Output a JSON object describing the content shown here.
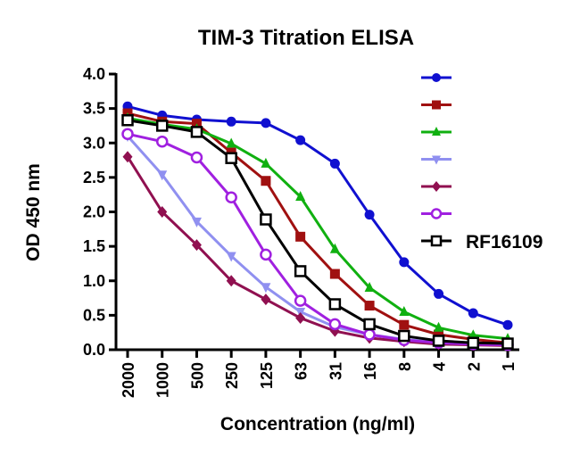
{
  "chart_data": {
    "type": "line",
    "title": "TIM-3 Titration ELISA",
    "xlabel": "Concentration (ng/ml)",
    "ylabel": "OD 450 nm",
    "categories": [
      "2000",
      "1000",
      "500",
      "250",
      "125",
      "63",
      "31",
      "16",
      "8",
      "4",
      "2",
      "1"
    ],
    "ylim": [
      0,
      4.0
    ],
    "yticks": [
      "0.0",
      "0.5",
      "1.0",
      "1.5",
      "2.0",
      "2.5",
      "3.0",
      "3.5",
      "4.0"
    ],
    "grid": false,
    "legend_position": "top-right",
    "series": [
      {
        "name": "",
        "color": "#1010d0",
        "marker": "circle-filled",
        "values": [
          3.53,
          3.4,
          3.34,
          3.31,
          3.29,
          3.04,
          2.7,
          1.96,
          1.27,
          0.81,
          0.53,
          0.36
        ]
      },
      {
        "name": "",
        "color": "#a01010",
        "marker": "square-filled",
        "values": [
          3.43,
          3.31,
          3.28,
          2.86,
          2.45,
          1.64,
          1.1,
          0.64,
          0.36,
          0.22,
          0.15,
          0.1
        ]
      },
      {
        "name": "",
        "color": "#10b010",
        "marker": "triangle-up-filled",
        "values": [
          3.36,
          3.27,
          3.2,
          2.99,
          2.7,
          2.22,
          1.46,
          0.9,
          0.55,
          0.32,
          0.21,
          0.16
        ]
      },
      {
        "name": "",
        "color": "#9090f0",
        "marker": "triangle-down-filled",
        "values": [
          3.1,
          2.54,
          1.86,
          1.36,
          0.91,
          0.55,
          0.33,
          0.22,
          0.15,
          0.11,
          0.09,
          0.08
        ]
      },
      {
        "name": "",
        "color": "#901050",
        "marker": "diamond-filled",
        "values": [
          2.8,
          2.0,
          1.52,
          1.0,
          0.73,
          0.46,
          0.27,
          0.17,
          0.12,
          0.08,
          0.07,
          0.06
        ]
      },
      {
        "name": "",
        "color": "#a020e0",
        "marker": "circle-open",
        "values": [
          3.13,
          3.02,
          2.79,
          2.21,
          1.38,
          0.71,
          0.37,
          0.22,
          0.14,
          0.1,
          0.08,
          0.07
        ]
      },
      {
        "name": "RF16109",
        "color": "#000000",
        "marker": "square-open",
        "values": [
          3.33,
          3.25,
          3.16,
          2.78,
          1.89,
          1.14,
          0.66,
          0.37,
          0.2,
          0.13,
          0.1,
          0.09
        ]
      }
    ]
  }
}
